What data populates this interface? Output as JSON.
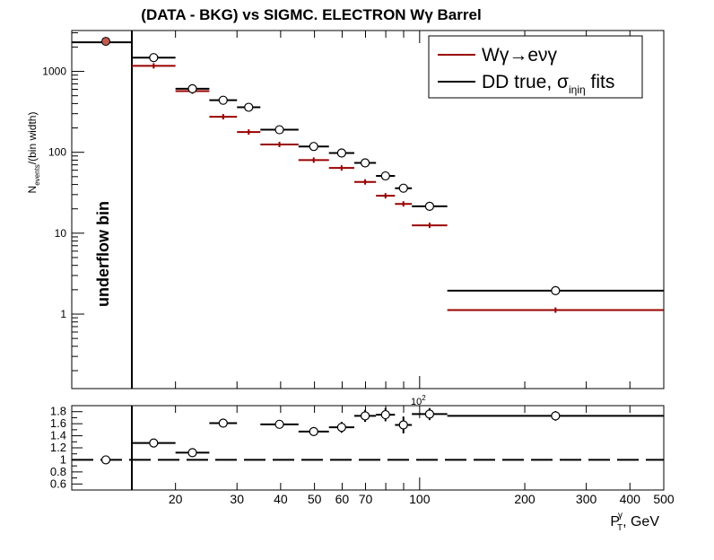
{
  "title": "(DATA - BKG) vs SIGMC. ELECTRON Wγ  Barrel",
  "chart_data": [
    {
      "type": "scatter",
      "panel": "main",
      "ylabel_main": "N",
      "ylabel_sub": "events",
      "ylabel_rest": "/(bin width)",
      "yscale": "log",
      "xscale": "log",
      "xlim": [
        10,
        500
      ],
      "ylim": [
        0.12,
        3200
      ],
      "ytick_labels": [
        "1",
        "10",
        "100",
        "1000"
      ],
      "ytick_values": [
        1,
        10,
        100,
        1000
      ],
      "annotation": "underflow bin",
      "legend_position": "top-right",
      "series": [
        {
          "name": "Wγ→eνγ",
          "color": "#990000",
          "marker": "cross",
          "points": [
            {
              "xlo": 15,
              "xhi": 20,
              "y": 1170
            },
            {
              "xlo": 20,
              "xhi": 25,
              "y": 570
            },
            {
              "xlo": 25,
              "xhi": 30,
              "y": 275
            },
            {
              "xlo": 30,
              "xhi": 35,
              "y": 178
            },
            {
              "xlo": 35,
              "xhi": 45,
              "y": 125
            },
            {
              "xlo": 45,
              "xhi": 55,
              "y": 80
            },
            {
              "xlo": 55,
              "xhi": 65,
              "y": 64
            },
            {
              "xlo": 65,
              "xhi": 75,
              "y": 43
            },
            {
              "xlo": 75,
              "xhi": 85,
              "y": 29
            },
            {
              "xlo": 85,
              "xhi": 95,
              "y": 23
            },
            {
              "xlo": 95,
              "xhi": 120,
              "y": 12.5
            },
            {
              "xlo": 120,
              "xhi": 500,
              "y": 1.12
            }
          ]
        },
        {
          "name_main": "DD true, σ",
          "name_sub": "iηiη",
          "name_tail": " fits",
          "color": "#000000",
          "marker": "open-circle",
          "points": [
            {
              "xlo": 15,
              "xhi": 20,
              "y": 1480,
              "err": 60
            },
            {
              "xlo": 20,
              "xhi": 25,
              "y": 610,
              "err": 35
            },
            {
              "xlo": 25,
              "xhi": 30,
              "y": 440,
              "err": 30
            },
            {
              "xlo": 30,
              "xhi": 35,
              "y": 360,
              "err": 25
            },
            {
              "xlo": 35,
              "xhi": 45,
              "y": 190,
              "err": 12
            },
            {
              "xlo": 45,
              "xhi": 55,
              "y": 118,
              "err": 8
            },
            {
              "xlo": 55,
              "xhi": 65,
              "y": 98,
              "err": 7
            },
            {
              "xlo": 65,
              "xhi": 75,
              "y": 74,
              "err": 6
            },
            {
              "xlo": 75,
              "xhi": 85,
              "y": 51,
              "err": 5
            },
            {
              "xlo": 85,
              "xhi": 95,
              "y": 36,
              "err": 4
            },
            {
              "xlo": 95,
              "xhi": 120,
              "y": 21.5,
              "err": 2
            },
            {
              "xlo": 120,
              "xhi": 500,
              "y": 1.95,
              "err": 0.12
            }
          ]
        }
      ],
      "underflow_point": {
        "y": 2350,
        "color": "#990000"
      }
    },
    {
      "type": "scatter",
      "panel": "ratio",
      "xlabel_main": "P",
      "xlabel_sub": "T",
      "xlabel_sup": "γ",
      "xlabel_rest": ", GeV",
      "xscale": "log",
      "xlim": [
        10,
        500
      ],
      "ylim": [
        0.5,
        1.9
      ],
      "ytick_labels": [
        "0.6",
        "0.8",
        "1",
        "1.2",
        "1.4",
        "1.6",
        "1.8"
      ],
      "ytick_values": [
        0.6,
        0.8,
        1.0,
        1.2,
        1.4,
        1.6,
        1.8
      ],
      "xtick_labels": [
        "20",
        "30",
        "40",
        "50",
        "60",
        "70",
        "100",
        "200",
        "300",
        "400",
        "500"
      ],
      "xtick_values": [
        20,
        30,
        40,
        50,
        60,
        70,
        100,
        200,
        300,
        400,
        500
      ],
      "xaxis_exponent": "10",
      "xaxis_exponent_power": "2",
      "reference_line": 1.0,
      "points": [
        {
          "xlo": 15,
          "xhi": 20,
          "y": 1.28,
          "err": 0.03
        },
        {
          "xlo": 20,
          "xhi": 25,
          "y": 1.12,
          "err": 0.04
        },
        {
          "xlo": 25,
          "xhi": 30,
          "y": 1.61,
          "err": 0.07
        },
        {
          "xlo": 35,
          "xhi": 45,
          "y": 1.59,
          "err": 0.06
        },
        {
          "xlo": 45,
          "xhi": 55,
          "y": 1.47,
          "err": 0.07
        },
        {
          "xlo": 55,
          "xhi": 65,
          "y": 1.54,
          "err": 0.09
        },
        {
          "xlo": 65,
          "xhi": 75,
          "y": 1.73,
          "err": 0.1
        },
        {
          "xlo": 75,
          "xhi": 85,
          "y": 1.75,
          "err": 0.11
        },
        {
          "xlo": 85,
          "xhi": 95,
          "y": 1.58,
          "err": 0.14
        },
        {
          "xlo": 95,
          "xhi": 120,
          "y": 1.76,
          "err": 0.1
        },
        {
          "xlo": 120,
          "xhi": 500,
          "y": 1.73,
          "err": 0.08
        }
      ],
      "underflow_point": {
        "y": 1.0
      }
    }
  ]
}
